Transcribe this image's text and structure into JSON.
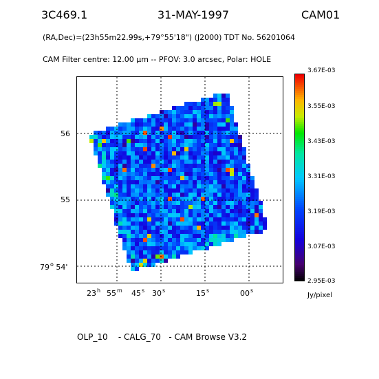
{
  "header": {
    "object": "3C469.1",
    "date": "31-MAY-1997",
    "instrument": "CAM01"
  },
  "coords_line": "(RA,Dec)=(23h55m22.99s,+79°55'18\") (J2000) TDT No. 56201064",
  "filter_line": "CAM  Filter  centre: 12.00 μm --   PFOV:  3.0 arcsec, Polar: HOLE",
  "axes": {
    "dec_labels": [
      "56",
      "55",
      "79° 54'"
    ],
    "dec_main": "79",
    "dec_deg": "o",
    "dec_min": "54'",
    "ra_labels": [
      {
        "v": "23",
        "u": "h"
      },
      {
        "v": "55",
        "u": "m"
      },
      {
        "v": "45",
        "u": "s"
      },
      {
        "v": "30",
        "u": "s"
      },
      {
        "v": "15",
        "u": "s"
      },
      {
        "v": "00",
        "u": "s"
      }
    ]
  },
  "colorbar": {
    "labels": [
      "3.67E-03",
      "3.55E-03",
      "3.43E-03",
      "3.31E-03",
      "3.19E-03",
      "3.07E-03",
      "2.95E-03"
    ],
    "unit": "Jy/pixel",
    "min": 0.00295,
    "max": 0.00367
  },
  "footer": "OLP_10    - CALG_70   - CAM Browse V3.2",
  "colors": {
    "background": "#ffffff",
    "grid": "#000000"
  }
}
